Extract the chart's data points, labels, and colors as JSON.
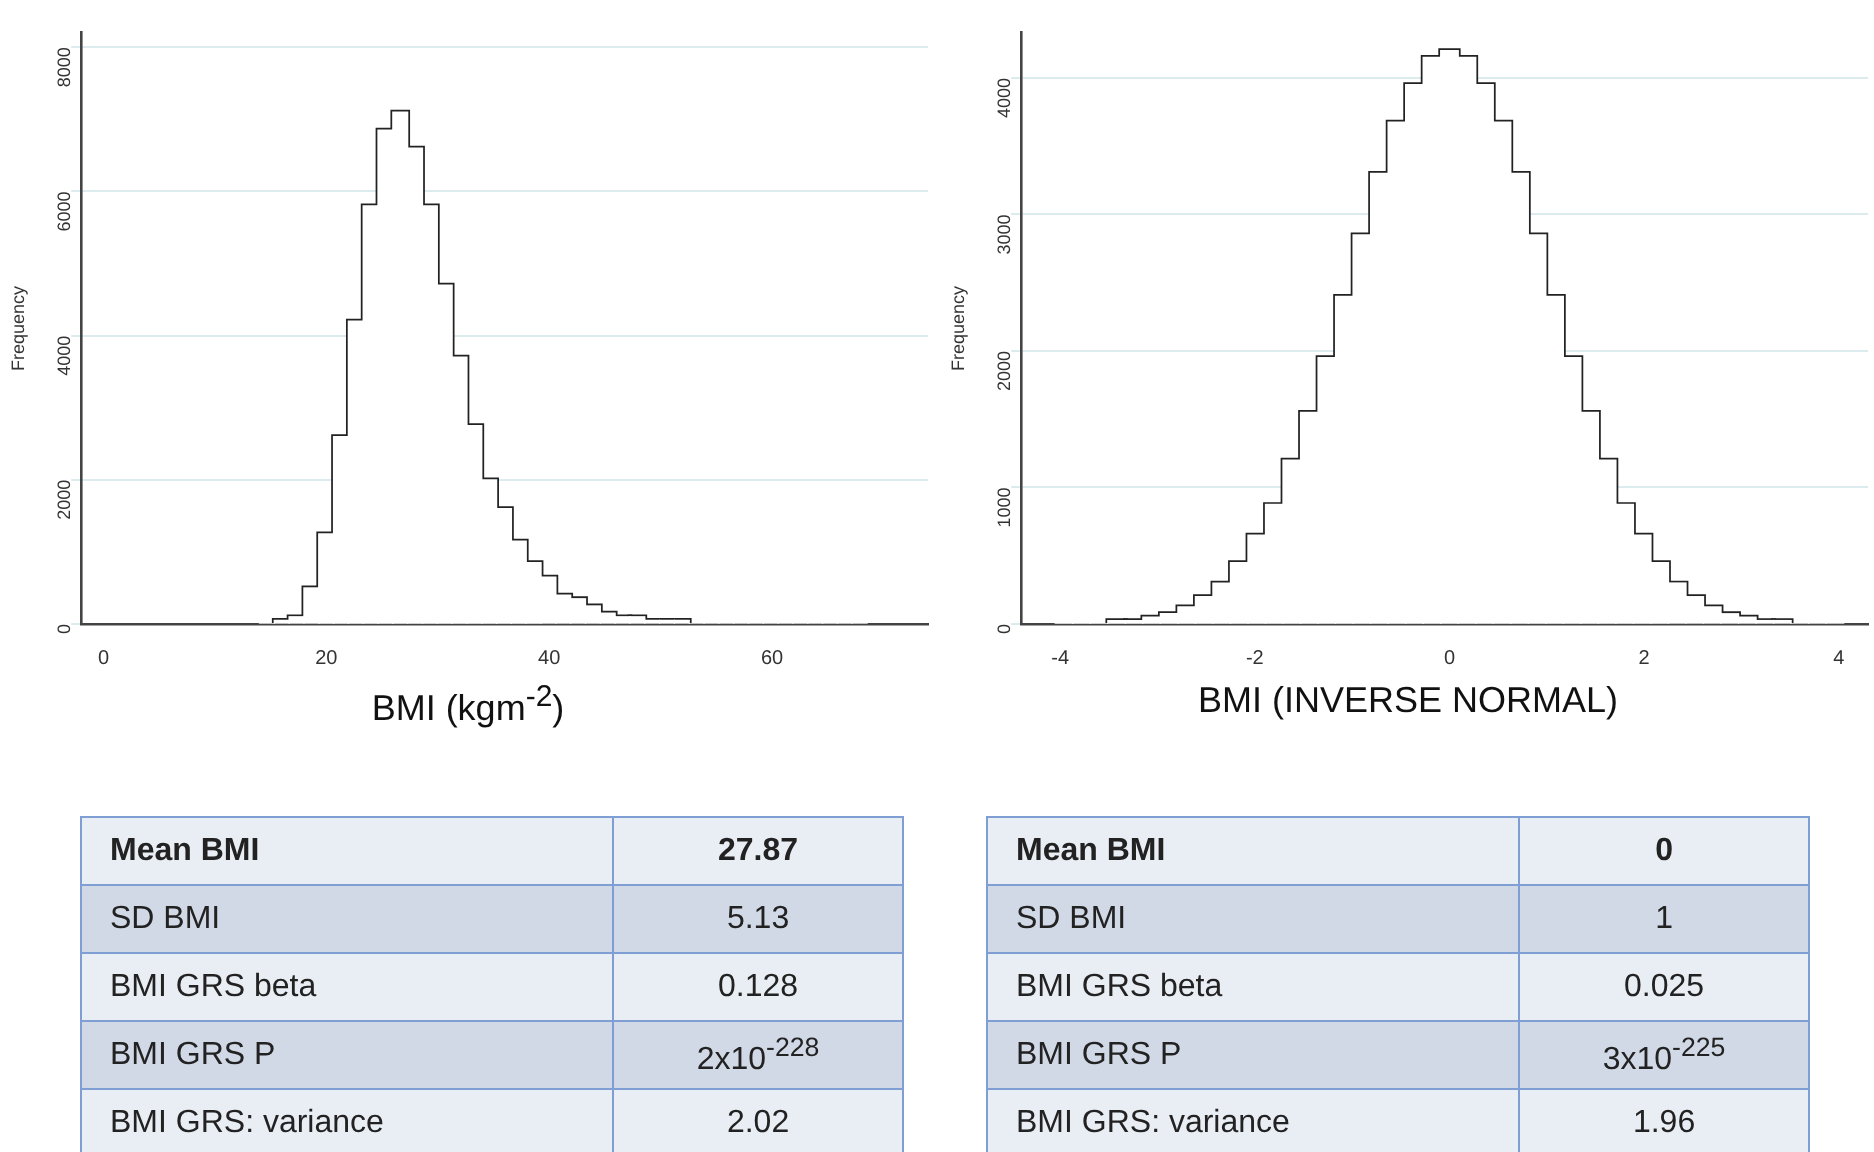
{
  "chart_data": [
    {
      "type": "histogram",
      "xlabel": "BMI (kgm$^{-2}$)",
      "ylabel": "Frequency",
      "bins": [
        14,
        15.33,
        16.66,
        17.99,
        19.32,
        20.65,
        21.98,
        23.31,
        24.64,
        25.97,
        27.3,
        28.63,
        29.96,
        31.29,
        32.62,
        33.95,
        35.28,
        36.61,
        37.94,
        39.27,
        40.6,
        41.93,
        43.26,
        44.59,
        45.92,
        47.25,
        48.58,
        49.91,
        51.24,
        52.57,
        53.9,
        55.23,
        56.56,
        57.89,
        59.22,
        60.55,
        61.88,
        63.21,
        64.54,
        65.87,
        67.2,
        68.53
      ],
      "values": [
        0,
        50,
        100,
        500,
        1250,
        2600,
        4200,
        5800,
        6850,
        7100,
        6600,
        5800,
        4700,
        3700,
        2750,
        2000,
        1600,
        1150,
        850,
        650,
        400,
        350,
        250,
        150,
        100,
        100,
        50,
        50,
        50,
        0,
        0,
        0,
        0,
        0,
        0,
        0,
        0,
        0,
        0,
        0,
        0
      ],
      "color": "#ffffff",
      "xlim": [
        -2,
        74
      ],
      "xticks": [
        0,
        20,
        40,
        60
      ],
      "ylim": [
        0,
        8200
      ],
      "yticks": [
        0,
        2000,
        4000,
        6000,
        8000
      ],
      "grid": "y",
      "annotations": [
        "Mean BMI",
        "27.87",
        "SD BMI",
        "5.13",
        "BMI  GRS beta",
        "0.128",
        "BMI  GRS P",
        "2x10$^{-228}$",
        "BMI  GRS: variance",
        "2.02"
      ]
    },
    {
      "type": "histogram",
      "xlabel": "BMI (INVERSE NORMAL)",
      "ylabel": "Frequency",
      "bins": [
        -4.05,
        -3.87,
        -3.69,
        -3.51,
        -3.33,
        -3.15,
        -2.97,
        -2.79,
        -2.61,
        -2.43,
        -2.25,
        -2.07,
        -1.89,
        -1.71,
        -1.53,
        -1.35,
        -1.17,
        -0.99,
        -0.81,
        -0.63,
        -0.45,
        -0.27,
        -0.09,
        0.09,
        0.27,
        0.45,
        0.63,
        0.81,
        0.99,
        1.17,
        1.35,
        1.53,
        1.71,
        1.89,
        2.07,
        2.25,
        2.43,
        2.61,
        2.79,
        2.97,
        3.15,
        3.33,
        3.51,
        3.69,
        3.87,
        4.05
      ],
      "values": [
        0,
        0,
        0,
        25,
        25,
        50,
        75,
        125,
        200,
        300,
        450,
        650,
        875,
        1200,
        1550,
        1950,
        2400,
        2850,
        3300,
        3675,
        3950,
        4150,
        4200,
        4150,
        3950,
        3675,
        3300,
        2850,
        2400,
        1950,
        1550,
        1200,
        875,
        650,
        450,
        300,
        200,
        125,
        75,
        50,
        25,
        25,
        0,
        0,
        0
      ],
      "color": "#ffffff",
      "xlim": [
        -4.4,
        4.3
      ],
      "xticks": [
        -4,
        -2,
        0,
        2,
        4
      ],
      "ylim": [
        0,
        4330
      ],
      "yticks": [
        0,
        1000,
        2000,
        3000,
        4000
      ],
      "grid": "y",
      "annotations": [
        "Mean BMI",
        "0",
        "SD BMI",
        "1",
        "BMI  GRS beta",
        "0.025",
        "BMI  GRS P",
        "3x10$^{-225}$",
        "BMI  GRS: variance",
        "1.96"
      ]
    }
  ]
}
